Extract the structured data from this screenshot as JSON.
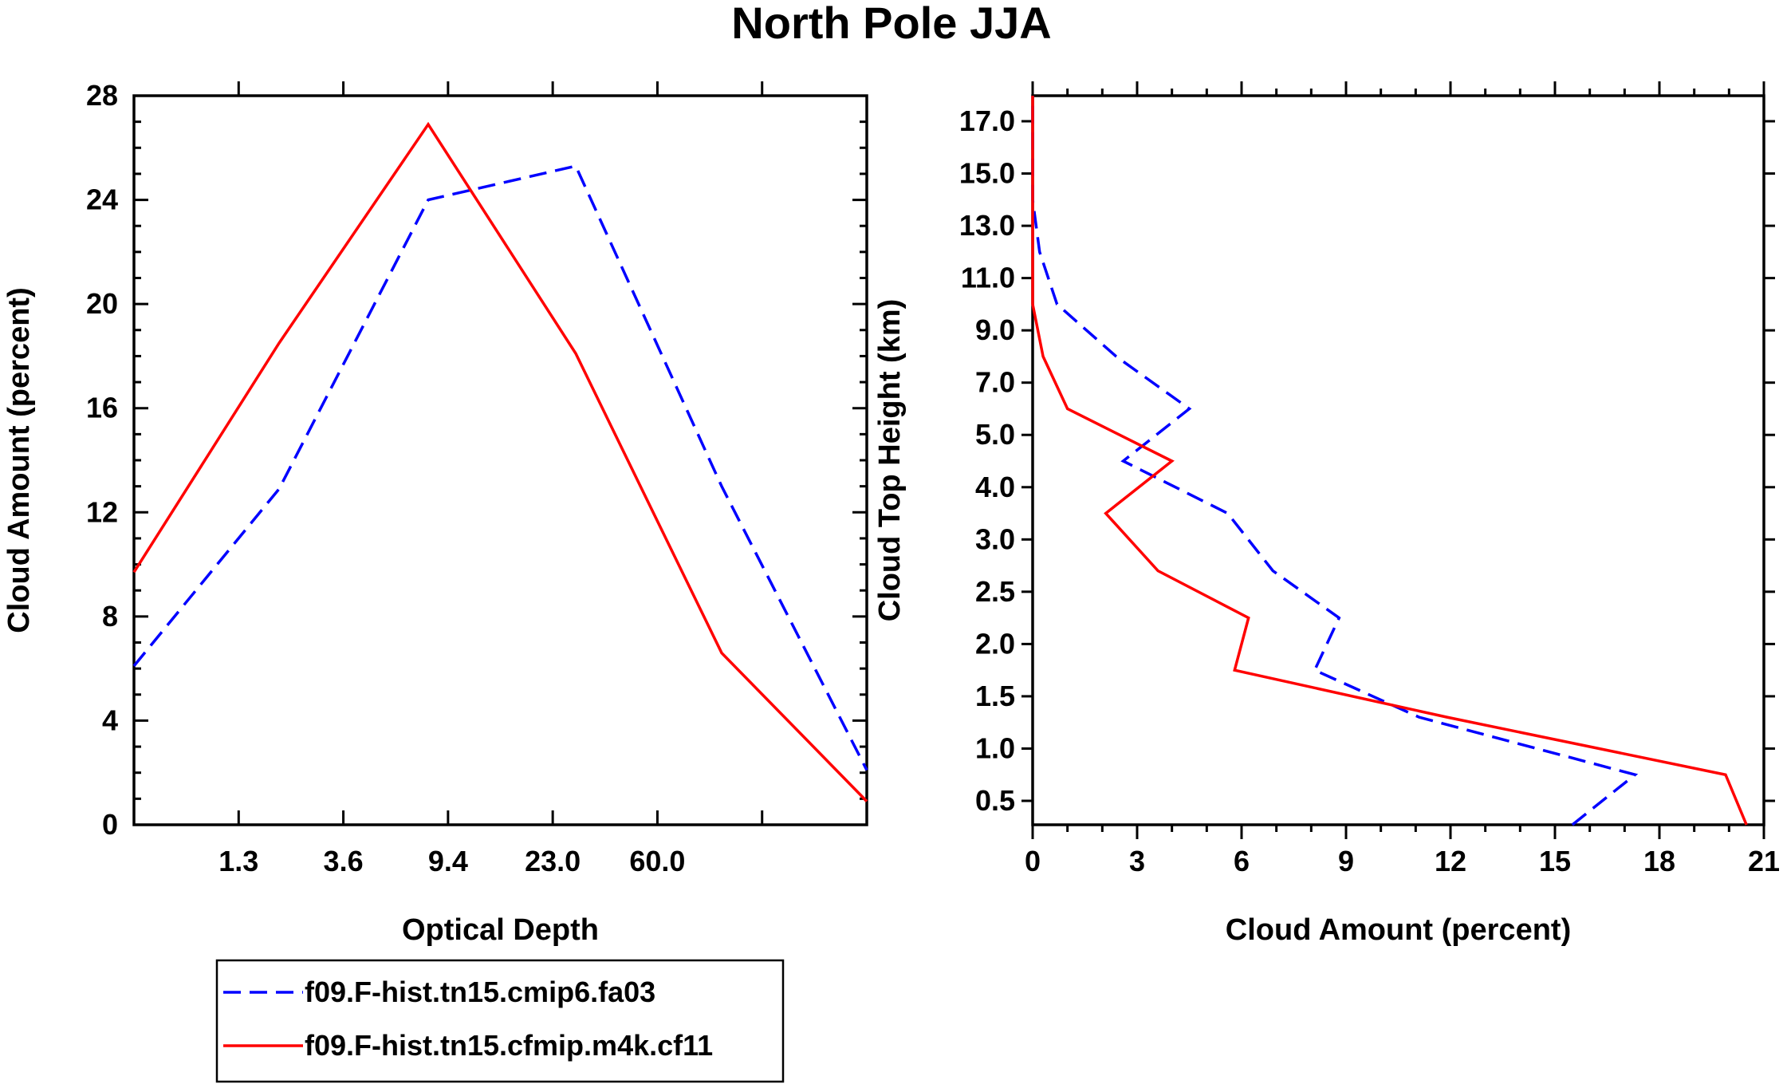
{
  "title": "North Pole JJA",
  "colors": {
    "cmip6": "#0000ff",
    "m4k": "#ff0000"
  },
  "legend": {
    "items": [
      {
        "label": "f09.F-hist.tn15.cmip6.fa03",
        "color": "#0000ff",
        "dash": "dashed"
      },
      {
        "label": "f09.F-hist.tn15.cfmip.m4k.cf11",
        "color": "#ff0000",
        "dash": "solid"
      }
    ]
  },
  "chart_data": [
    {
      "type": "line",
      "title": "",
      "xlabel": "Optical Depth",
      "ylabel": "Cloud Amount (percent)",
      "x_tick_labels": [
        "1.3",
        "3.6",
        "9.4",
        "23.0",
        "60.0"
      ],
      "x_bins": 7,
      "y_tick_labels": [
        "0",
        "4",
        "8",
        "12",
        "16",
        "20",
        "24",
        "28"
      ],
      "ylim": [
        0,
        28
      ],
      "series": [
        {
          "name": "f09.F-hist.tn15.cmip6.fa03",
          "color": "#0000ff",
          "dash": "dashed",
          "values": [
            6.1,
            12.9,
            24.0,
            25.3,
            13.0,
            2.1
          ]
        },
        {
          "name": "f09.F-hist.tn15.cfmip.m4k.cf11",
          "color": "#ff0000",
          "dash": "solid",
          "values": [
            9.7,
            18.5,
            26.9,
            18.1,
            6.6,
            0.9
          ]
        }
      ]
    },
    {
      "type": "line",
      "title": "",
      "xlabel": "Cloud Amount (percent)",
      "ylabel": "Cloud Top Height (km)",
      "x_tick_labels": [
        "0",
        "3",
        "6",
        "9",
        "12",
        "15",
        "18",
        "21"
      ],
      "xlim": [
        0,
        21
      ],
      "y_tick_labels": [
        "0.5",
        "1.0",
        "1.5",
        "2.0",
        "2.5",
        "3.0",
        "4.0",
        "5.0",
        "7.0",
        "9.0",
        "11.0",
        "13.0",
        "15.0",
        "17.0"
      ],
      "series": [
        {
          "name": "f09.F-hist.tn15.cmip6.fa03",
          "color": "#0000ff",
          "dash": "dashed",
          "values": [
            15.5,
            17.3,
            11.1,
            8.1,
            8.8,
            6.9,
            5.6,
            2.6,
            4.5,
            2.4,
            0.7,
            0.2,
            0.0,
            0.0,
            0.0
          ]
        },
        {
          "name": "f09.F-hist.tn15.cfmip.m4k.cf11",
          "color": "#ff0000",
          "dash": "solid",
          "values": [
            20.5,
            19.9,
            11.9,
            5.8,
            6.2,
            3.6,
            2.1,
            4.0,
            1.0,
            0.3,
            0.0,
            0.0,
            0.0,
            0.0,
            0.0
          ]
        }
      ]
    }
  ]
}
